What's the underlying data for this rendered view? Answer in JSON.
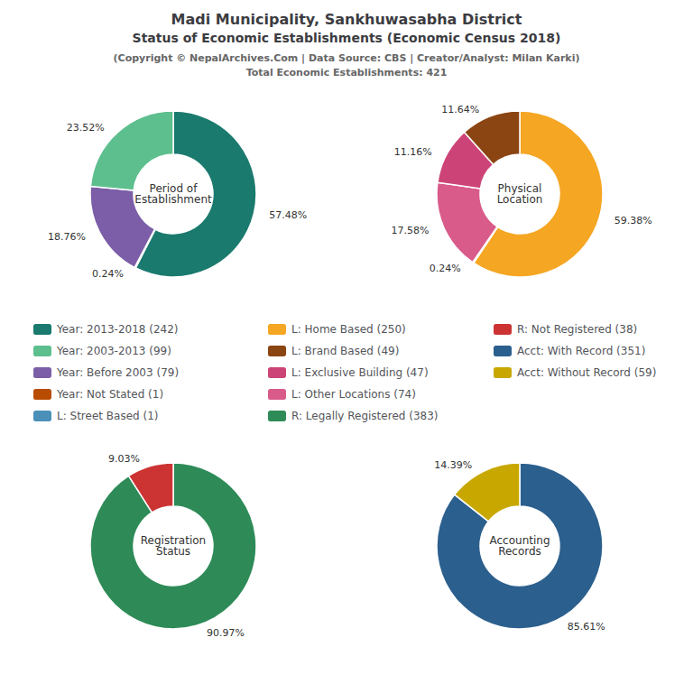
{
  "title": [
    "Madi Municipality, Sankhuwasabha District",
    "Status of Economic Establishments (Economic Census 2018)"
  ],
  "subtitle": [
    "(Copyright © NepalArchives.Com | Data Source: CBS | Creator/Analyst: Milan Karki)",
    "Total Economic Establishments: 421"
  ],
  "legend_entries": [
    "Year: 2013-2018 (242)",
    "Year: 2003-2013 (99)",
    "Year: Before 2003 (79)",
    "Year: Not Stated (1)",
    "L: Street Based (1)",
    "L: Home Based (250)",
    "L: Brand Based (49)",
    "L: Exclusive Building (47)",
    "L: Other Locations (74)",
    "R: Legally Registered (383)",
    "R: Not Registered (38)",
    "Acct: With Record (351)",
    "Acct: Without Record (59)"
  ],
  "chart_data": [
    {
      "type": "pie",
      "title": "Period of\nEstablishment",
      "categories": [
        "Year: 2013-2018 (242)",
        "Year: Not Stated (1)",
        "Year: Before 2003 (79)",
        "Year: 2003-2013 (99)"
      ],
      "values": [
        57.48,
        0.24,
        18.76,
        23.52
      ],
      "value_labels": [
        "57.48%",
        "0.24%",
        "18.76%",
        "23.52%"
      ],
      "colors": [
        "#1a7a6e",
        "#b84c00",
        "#7b5ea7",
        "#5dbf8e"
      ],
      "data_labels": true
    },
    {
      "type": "pie",
      "title": "Physical\nLocation",
      "categories": [
        "L: Home Based (250)",
        "L: Street Based (1)",
        "L: Other Locations (74)",
        "L: Exclusive Building (47)",
        "L: Brand Based (49)"
      ],
      "values": [
        59.38,
        0.24,
        17.58,
        11.16,
        11.64
      ],
      "value_labels": [
        "59.38%",
        "0.24%",
        "17.58%",
        "11.16%",
        "11.64%"
      ],
      "colors": [
        "#f5a623",
        "#4a90b8",
        "#d95b8a",
        "#cc4477",
        "#8b4513"
      ],
      "data_labels": true
    },
    {
      "type": "pie",
      "title": "Registration\nStatus",
      "categories": [
        "R: Legally Registered (383)",
        "R: Not Registered (38)"
      ],
      "values": [
        90.97,
        9.03
      ],
      "value_labels": [
        "90.97%",
        "9.03%"
      ],
      "colors": [
        "#2e8b57",
        "#cc3333"
      ],
      "data_labels": true
    },
    {
      "type": "pie",
      "title": "Accounting\nRecords",
      "categories": [
        "Acct: With Record (351)",
        "Acct: Without Record (59)"
      ],
      "values": [
        85.61,
        14.39
      ],
      "value_labels": [
        "85.61%",
        "14.39%"
      ],
      "colors": [
        "#2b5f8e",
        "#c8a800"
      ],
      "data_labels": true
    }
  ]
}
